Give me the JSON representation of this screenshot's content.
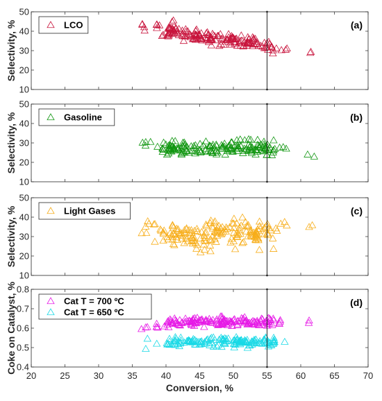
{
  "chart_data": [
    {
      "type": "scatter",
      "panel_label": "(a)",
      "ylabel": "Selectivity, %",
      "xlim": [
        20,
        70
      ],
      "ylim": [
        10,
        50
      ],
      "yticks": [
        "10",
        "20",
        "30",
        "40",
        "50"
      ],
      "vline_x": 55,
      "legend_placement": "top-left",
      "series": [
        {
          "name": "LCO",
          "color": "#c8143c",
          "marker": "triangle-open",
          "seed": 11,
          "clusters": [
            {
              "n": 4,
              "xr": [
                36.3,
                38.5
              ],
              "a": 40.5,
              "b": -0.55,
              "s": 2.0
            },
            {
              "n": 10,
              "xr": [
                38.5,
                41.5
              ],
              "a": 40.5,
              "b": -0.55,
              "s": 1.8
            },
            {
              "n": 160,
              "xr": [
                40,
                56
              ],
              "a": 40.5,
              "b": -0.55,
              "s": 1.6
            },
            {
              "n": 4,
              "xr": [
                56,
                58
              ],
              "a": 40.5,
              "b": -0.55,
              "s": 1.2
            },
            {
              "n": 2,
              "xr": [
                61,
                62
              ],
              "a": 40.5,
              "b": -0.55,
              "s": 0.8
            }
          ]
        }
      ]
    },
    {
      "type": "scatter",
      "panel_label": "(b)",
      "ylabel": "Selectivity, %",
      "xlim": [
        20,
        70
      ],
      "ylim": [
        10,
        50
      ],
      "yticks": [
        "10",
        "20",
        "30",
        "40",
        "50"
      ],
      "vline_x": 55,
      "legend_placement": "top-left",
      "series": [
        {
          "name": "Gasoline",
          "color": "#119611",
          "marker": "triangle-open",
          "seed": 23,
          "clusters": [
            {
              "n": 5,
              "xr": [
                36.3,
                39
              ],
              "a": 30.0,
              "b": -0.05,
              "s": 1.2
            },
            {
              "n": 8,
              "xr": [
                39,
                41
              ],
              "a": 28.5,
              "b": 0.0,
              "s": 1.4
            },
            {
              "n": 160,
              "xr": [
                40,
                56
              ],
              "a": 27.5,
              "b": 0.0,
              "s": 1.7
            },
            {
              "n": 4,
              "xr": [
                56,
                58
              ],
              "a": 27.5,
              "b": 0.0,
              "s": 0.6
            },
            {
              "n": 2,
              "xr": [
                61,
                62
              ],
              "a": 24.5,
              "b": 0.0,
              "s": 1.0
            }
          ]
        }
      ]
    },
    {
      "type": "scatter",
      "panel_label": "(c)",
      "ylabel": "Selectivity, %",
      "xlim": [
        20,
        70
      ],
      "ylim": [
        10,
        50
      ],
      "yticks": [
        "10",
        "20",
        "30",
        "40",
        "50"
      ],
      "vline_x": 55,
      "legend_placement": "top-left",
      "series": [
        {
          "name": "Light Gases",
          "color": "#f7ad19",
          "marker": "triangle-open",
          "seed": 37,
          "clusters": [
            {
              "n": 8,
              "xr": [
                36.3,
                39
              ],
              "a": 33.5,
              "b": 0.0,
              "s": 3.0
            },
            {
              "n": 10,
              "xr": [
                39,
                41
              ],
              "a": 31.5,
              "b": 0.0,
              "s": 3.0
            },
            {
              "n": 160,
              "xr": [
                40,
                56
              ],
              "a": 30.0,
              "b": 0.12,
              "s": 3.5
            },
            {
              "n": 5,
              "xr": [
                56,
                58
              ],
              "a": 35.0,
              "b": 0.0,
              "s": 2.0
            },
            {
              "n": 2,
              "xr": [
                61,
                62
              ],
              "a": 35.5,
              "b": 0.0,
              "s": 1.0
            }
          ]
        }
      ]
    },
    {
      "type": "scatter",
      "panel_label": "(d)",
      "ylabel": "Coke on Catalyst, %",
      "xlabel": "Conversion, %",
      "xlim": [
        20,
        70
      ],
      "ylim": [
        0.4,
        0.8
      ],
      "yticks": [
        "0.4",
        "0.5",
        "0.6",
        "0.7",
        "0.8"
      ],
      "xticks": [
        "20",
        "25",
        "30",
        "35",
        "40",
        "45",
        "50",
        "55",
        "60",
        "65",
        "70"
      ],
      "vline_x": 55,
      "legend_placement": "top-left",
      "series": [
        {
          "name": "Cat T =  700 ºC",
          "color": "#e619e6",
          "marker": "triangle-open",
          "seed": 41,
          "clusters": [
            {
              "n": 8,
              "xr": [
                36.3,
                40
              ],
              "a": 0.605,
              "b": 0.0,
              "s": 0.008
            },
            {
              "n": 150,
              "xr": [
                40,
                56
              ],
              "a": 0.632,
              "b": 0.0,
              "s": 0.011
            },
            {
              "n": 4,
              "xr": [
                56,
                58
              ],
              "a": 0.628,
              "b": 0.0,
              "s": 0.008
            },
            {
              "n": 2,
              "xr": [
                61,
                62
              ],
              "a": 0.633,
              "b": 0.0,
              "s": 0.005
            }
          ]
        },
        {
          "name": "Cat T =  650 ºC",
          "color": "#19d9e6",
          "marker": "triangle-open",
          "seed": 53,
          "clusters": [
            {
              "n": 3,
              "xr": [
                36.3,
                40
              ],
              "a": 0.52,
              "b": 0.0,
              "s": 0.015
            },
            {
              "n": 150,
              "xr": [
                40,
                56
              ],
              "a": 0.53,
              "b": 0.0,
              "s": 0.011
            },
            {
              "n": 4,
              "xr": [
                56,
                58
              ],
              "a": 0.535,
              "b": 0.0,
              "s": 0.006
            }
          ]
        }
      ]
    }
  ]
}
